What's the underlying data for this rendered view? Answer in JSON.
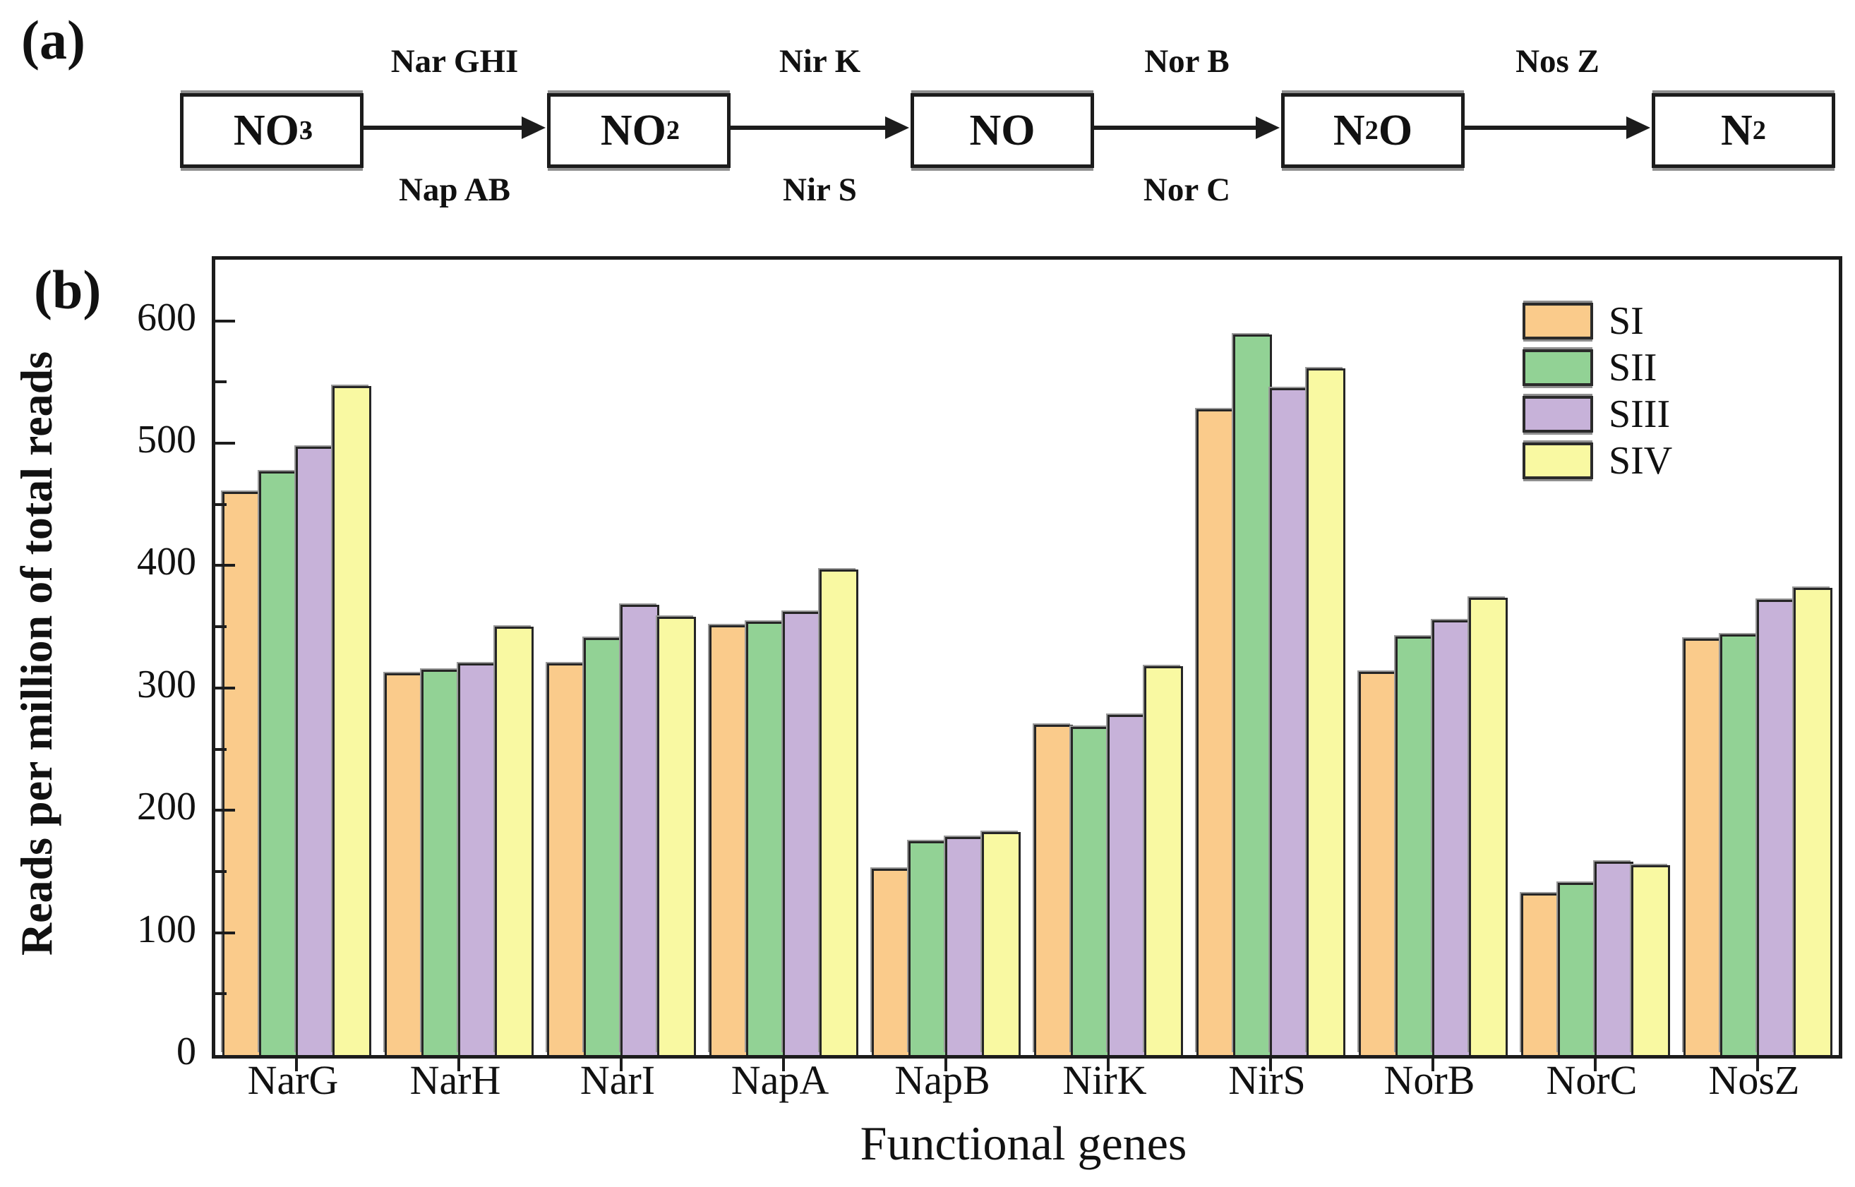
{
  "panel_a": {
    "label": "(a)",
    "boxes": [
      {
        "name": "NO3-",
        "parts": [
          {
            "t": "NO"
          },
          {
            "t": "3",
            "s": "sub"
          },
          {
            "t": "-",
            "s": "sup"
          }
        ]
      },
      {
        "name": "NO2-",
        "parts": [
          {
            "t": "NO"
          },
          {
            "t": "2",
            "s": "sub"
          },
          {
            "t": "-",
            "s": "sup"
          }
        ]
      },
      {
        "name": "NO",
        "parts": [
          {
            "t": "NO"
          }
        ]
      },
      {
        "name": "N2O",
        "parts": [
          {
            "t": "N"
          },
          {
            "t": "2",
            "s": "sub"
          },
          {
            "t": "O"
          }
        ]
      },
      {
        "name": "N2",
        "parts": [
          {
            "t": "N"
          },
          {
            "t": "2",
            "s": "sub"
          }
        ]
      }
    ],
    "arrows": [
      {
        "top": "Nar GHI",
        "bottom": "Nap AB"
      },
      {
        "top": "Nir K",
        "bottom": "Nir S"
      },
      {
        "top": "Nor B",
        "bottom": "Nor C"
      },
      {
        "top": "Nos Z",
        "bottom": ""
      }
    ]
  },
  "panel_b": {
    "label": "(b)"
  },
  "chart_data": {
    "type": "bar",
    "title": "",
    "xlabel": "Functional genes",
    "ylabel": "Reads per million of total reads",
    "categories": [
      "NarG",
      "NarH",
      "NarI",
      "NapA",
      "NapB",
      "NirK",
      "NirS",
      "NorB",
      "NorC",
      "NosZ"
    ],
    "series": [
      {
        "name": "SI",
        "color": "#FACB8B",
        "values": [
          460,
          312,
          320,
          351,
          152,
          270,
          528,
          313,
          132,
          340
        ]
      },
      {
        "name": "SII",
        "color": "#92D295",
        "values": [
          477,
          315,
          341,
          354,
          175,
          268,
          589,
          342,
          141,
          344
        ]
      },
      {
        "name": "SIII",
        "color": "#C7B2D9",
        "values": [
          497,
          320,
          368,
          362,
          178,
          278,
          545,
          355,
          158,
          372
        ]
      },
      {
        "name": "SIV",
        "color": "#F9F9A2",
        "values": [
          547,
          350,
          358,
          397,
          182,
          318,
          561,
          374,
          155,
          382
        ]
      }
    ],
    "ylim": [
      0,
      650
    ],
    "yticks_labeled": [
      0,
      100,
      200,
      300,
      400,
      500,
      600
    ],
    "ytick_minor_step": 50,
    "grid": false,
    "legend_position": "top-right",
    "axis_color": "#1c1c1c"
  }
}
